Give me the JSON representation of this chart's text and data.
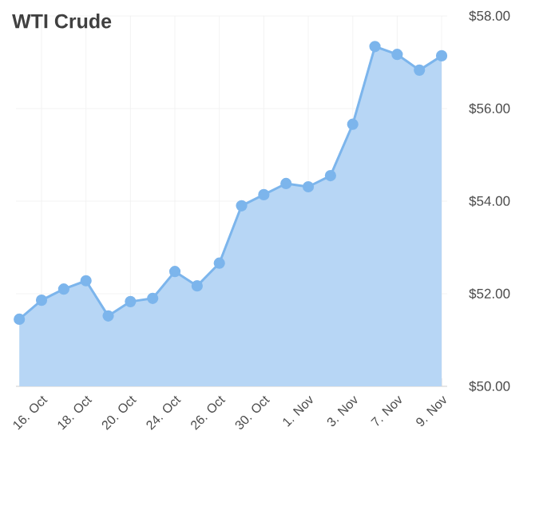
{
  "chart_data": {
    "type": "area",
    "title": "WTI Crude",
    "categories": [
      null,
      "16. Oct",
      null,
      "18. Oct",
      null,
      "20. Oct",
      null,
      "24. Oct",
      null,
      "26. Oct",
      null,
      "30. Oct",
      null,
      "1. Nov",
      null,
      "3. Nov",
      null,
      "7. Nov",
      null,
      "9. Nov"
    ],
    "series": [
      {
        "color": "#7cb5ec",
        "values": [
          51.45,
          51.86,
          52.1,
          52.28,
          51.52,
          51.83,
          51.9,
          52.48,
          52.17,
          52.66,
          53.9,
          54.14,
          54.38,
          54.31,
          54.55,
          55.66,
          57.34,
          57.17,
          56.83,
          57.14
        ]
      }
    ],
    "ylim": [
      50,
      58
    ],
    "yticks": [
      {
        "value": 50,
        "label": "$50.00"
      },
      {
        "value": 52,
        "label": "$52.00"
      },
      {
        "value": 54,
        "label": "$54.00"
      },
      {
        "value": 56,
        "label": "$56.00"
      },
      {
        "value": 58,
        "label": "$58.00"
      }
    ],
    "grid": true,
    "marker": "circle"
  }
}
